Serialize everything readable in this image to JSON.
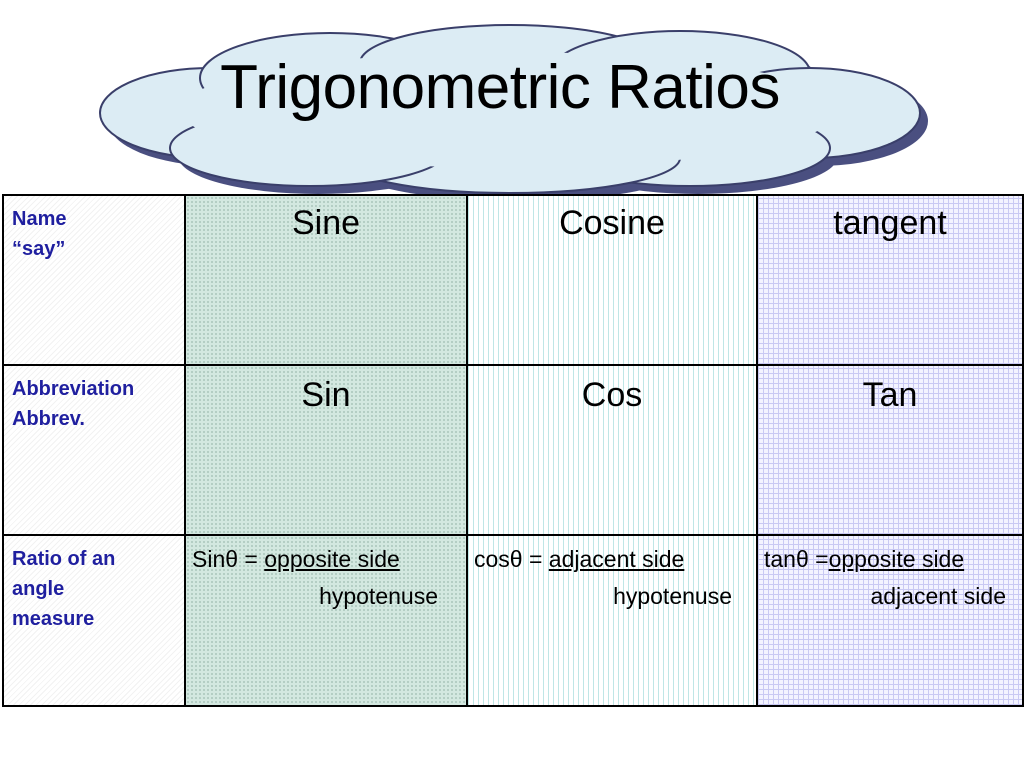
{
  "title": "Trigonometric Ratios",
  "rows": [
    {
      "header_lines": [
        "Name",
        "“say”"
      ],
      "cells": [
        "Sine",
        "Cosine",
        "tangent"
      ]
    },
    {
      "header_lines": [
        "Abbreviation",
        "Abbrev."
      ],
      "cells": [
        "Sin",
        "Cos",
        "Tan"
      ]
    },
    {
      "header_lines": [
        "Ratio of an",
        "angle",
        "measure"
      ],
      "formulas": [
        {
          "lhs": "Sinθ = ",
          "numerator": "opposite side",
          "denominator": "hypotenuse"
        },
        {
          "lhs": "cosθ = ",
          "numerator": "adjacent side",
          "denominator": "hypotenuse"
        },
        {
          "lhs": "tanθ =",
          "numerator": "opposite side",
          "denominator": "adjacent side"
        }
      ]
    }
  ],
  "colors": {
    "header_text": "#1f1f9f",
    "cloud_fill": "#dcecf4",
    "cloud_shadow": "#4a4f80"
  }
}
